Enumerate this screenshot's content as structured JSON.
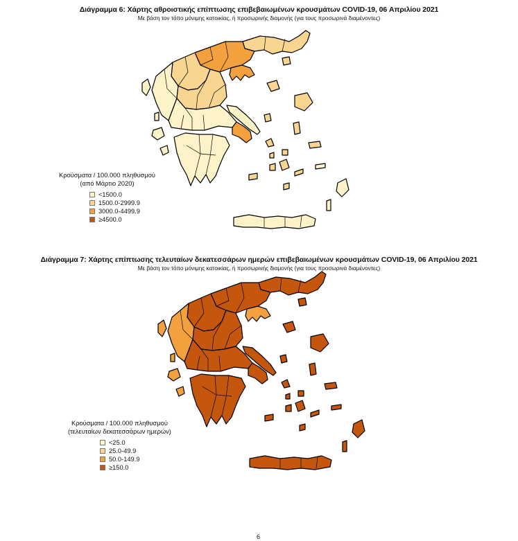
{
  "maps": [
    {
      "title": "Διάγραμμα 6: Χάρτης αθροιστικής επίπτωσης επιβεβαιωμένων κρουσμάτων COVID-19, 06 Απριλίου 2021",
      "subtitle": "Με βάση τον τόπο μόνιμης κατοικίας, ή προσωρινής διαμονής (για τους προσωρινά διαμένοντες)",
      "legend": {
        "title_line1": "Κρούσματα / 100.000 πληθυσμού",
        "title_line2": "(από Μάρτιο 2020)",
        "items": [
          {
            "label": "<1500.0",
            "color": "#fdf3c8"
          },
          {
            "label": "1500.0-2999.9",
            "color": "#f8d590"
          },
          {
            "label": "3000.0-4499.9",
            "color": "#f3a13f"
          },
          {
            "label": "≥4500.0",
            "color": "#c5560e"
          }
        ]
      },
      "regions": {
        "thrace": "#f8d590",
        "central_macedonia": "#f3a13f",
        "chalkidiki": "#f3a13f",
        "west_macedonia": "#f8d590",
        "epirus": "#fdf3c8",
        "thessaly": "#f8d590",
        "central_greece": "#fdf3c8",
        "attica": "#f3a13f",
        "peloponnese": "#fdf3c8",
        "evia": "#fdf3c8",
        "crete": "#fdf3c8",
        "ionian": "#fdf3c8",
        "aegean_north": "#f8d590",
        "aegean_south": "#f8d590",
        "dodecanese": "#fdf3c8"
      }
    },
    {
      "title": "Διάγραμμα 7: Χάρτης επίπτωσης τελευταίων δεκατεσσάρων ημερών επιβεβαιωμένων κρουσμάτων COVID-19, 06 Απριλίου 2021",
      "subtitle": "Με βάση τον τόπο μόνιμης κατοικίας, ή προσωρινής διαμονής (για τους προσωρινά διαμένοντες)",
      "legend": {
        "title_line1": "Κρούσματα / 100.000 πληθυσμού",
        "title_line2": "(τελευταίων δεκατεσσάρων ημερών)",
        "items": [
          {
            "label": "<25.0",
            "color": "#fdf3c8"
          },
          {
            "label": "25.0-49.9",
            "color": "#f8d590"
          },
          {
            "label": "50.0-149.9",
            "color": "#f3a13f"
          },
          {
            "label": "≥150.0",
            "color": "#c5560e"
          }
        ]
      },
      "regions": {
        "thrace": "#c5560e",
        "central_macedonia": "#c5560e",
        "chalkidiki": "#f3a13f",
        "west_macedonia": "#c5560e",
        "epirus": "#f3a13f",
        "thessaly": "#c5560e",
        "central_greece": "#c5560e",
        "attica": "#c5560e",
        "peloponnese": "#c5560e",
        "evia": "#c5560e",
        "crete": "#c5560e",
        "ionian": "#f3a13f",
        "aegean_north": "#c5560e",
        "aegean_south": "#c5560e",
        "dodecanese": "#c5560e"
      }
    }
  ],
  "page_number": "6"
}
